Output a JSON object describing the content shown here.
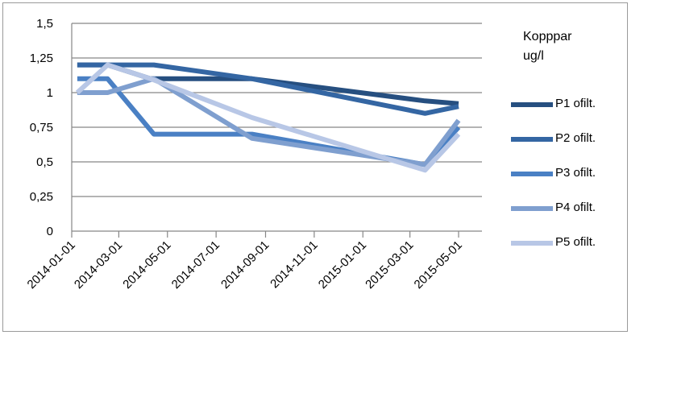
{
  "chart_data": {
    "type": "line",
    "title": "",
    "legend_title": [
      "Kopppar",
      "ug/l"
    ],
    "legend_position": "right",
    "grid": true,
    "ylim": [
      0,
      1.5
    ],
    "yticks": [
      "0",
      "0,25",
      "0,5",
      "0,75",
      "1",
      "1,25",
      "1,5"
    ],
    "ytick_values": [
      0,
      0.25,
      0.5,
      0.75,
      1,
      1.25,
      1.5
    ],
    "xlim": [
      "2014-01-01",
      "2015-05-01"
    ],
    "xticks": [
      "2014-01-01",
      "2014-03-01",
      "2014-05-01",
      "2014-07-01",
      "2014-09-01",
      "2014-11-01",
      "2015-01-01",
      "2015-03-01",
      "2015-05-01"
    ],
    "series": [
      {
        "name": "P1 ofilt.",
        "color": "#264f80",
        "x": [
          "2014-01-08",
          "2014-02-15",
          "2014-04-10",
          "2014-08-15",
          "2015-03-20",
          "2015-05-01"
        ],
        "values": [
          1.2,
          1.2,
          1.1,
          1.1,
          0.94,
          0.92
        ]
      },
      {
        "name": "P2 ofilt.",
        "color": "#3466a3",
        "x": [
          "2014-01-08",
          "2014-02-15",
          "2014-04-10",
          "2014-04-14",
          "2014-08-15",
          "2015-03-20",
          "2015-05-01"
        ],
        "values": [
          1.2,
          1.2,
          1.2,
          1.2,
          1.1,
          0.85,
          0.9
        ]
      },
      {
        "name": "P3 ofilt.",
        "color": "#4a80c4",
        "x": [
          "2014-01-08",
          "2014-02-15",
          "2014-04-14",
          "2014-08-15",
          "2015-03-20",
          "2015-05-01"
        ],
        "values": [
          1.1,
          1.1,
          0.7,
          0.7,
          0.48,
          0.75
        ]
      },
      {
        "name": "P4 ofilt.",
        "color": "#7f9fcf",
        "x": [
          "2014-01-08",
          "2014-02-15",
          "2014-04-14",
          "2014-08-15",
          "2015-03-20",
          "2015-05-01"
        ],
        "values": [
          1.0,
          1.0,
          1.1,
          0.67,
          0.48,
          0.8
        ]
      },
      {
        "name": "P5 ofilt.",
        "color": "#b8c7e6",
        "x": [
          "2014-01-08",
          "2014-02-15",
          "2014-04-10",
          "2014-08-15",
          "2015-03-20",
          "2015-05-01"
        ],
        "values": [
          1.0,
          1.2,
          1.1,
          0.82,
          0.44,
          0.7
        ]
      }
    ]
  }
}
